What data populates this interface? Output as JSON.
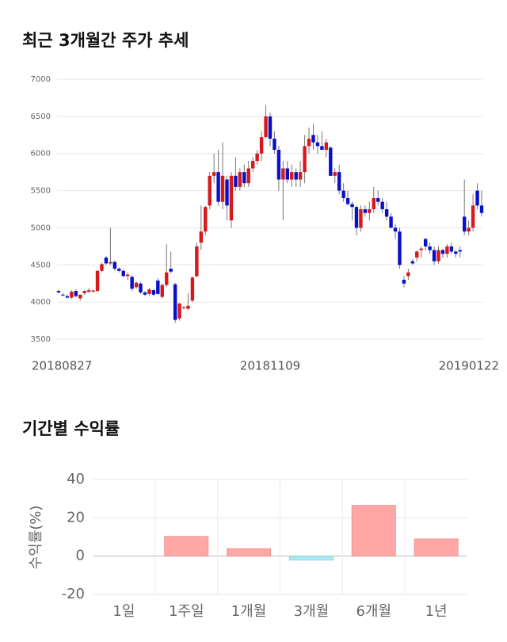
{
  "chart_data": [
    {
      "type": "candlestick",
      "title": "최근 3개월간 주가 추세",
      "categories": [
        "20180827",
        null,
        null,
        null,
        null,
        null,
        null,
        null,
        null,
        null,
        null,
        null,
        null,
        null,
        null,
        null,
        null,
        null,
        null,
        null,
        null,
        null,
        null,
        null,
        null,
        null,
        null,
        null,
        null,
        null,
        null,
        null,
        null,
        null,
        null,
        null,
        null,
        null,
        null,
        null,
        null,
        null,
        null,
        null,
        null,
        null,
        null,
        null,
        null,
        "20181109",
        null,
        null,
        null,
        null,
        null,
        null,
        null,
        null,
        null,
        null,
        null,
        null,
        null,
        null,
        null,
        null,
        null,
        null,
        null,
        null,
        null,
        null,
        null,
        null,
        null,
        null,
        null,
        null,
        null,
        null,
        null,
        null,
        null,
        null,
        null,
        null,
        null,
        null,
        null,
        null,
        null,
        null,
        null,
        null,
        null,
        null,
        null,
        null,
        "20190122"
      ],
      "open": [
        4150,
        4100,
        4080,
        4060,
        4150,
        4050,
        4120,
        4140,
        4140,
        4150,
        4420,
        4600,
        4520,
        4540,
        4450,
        4420,
        4350,
        4340,
        4200,
        4250,
        4130,
        4110,
        4160,
        4290,
        4070,
        4230,
        4450,
        4240,
        3780,
        3920,
        3910,
        4020,
        4350,
        4800,
        4950,
        5300,
        5700,
        5750,
        5350,
        5650,
        5100,
        5700,
        5550,
        5750,
        5600,
        5800,
        5900,
        6000,
        6220,
        6500,
        6200,
        6050,
        5650,
        5800,
        5650,
        5750,
        5650,
        5750,
        6100,
        6250,
        6150,
        6100,
        6050,
        6080,
        5700,
        5750,
        5500,
        5400,
        5320,
        5280,
        5000,
        5250,
        5200,
        5250,
        5400,
        5350,
        5250,
        5150,
        5000,
        4950,
        4300,
        4350,
        4550,
        4600,
        4700,
        4850,
        4750,
        4700,
        4550,
        4700,
        4650,
        4750,
        4680,
        4700,
        5150,
        4950,
        5000,
        5500,
        5300
      ],
      "high": [
        4170,
        4120,
        4100,
        4160,
        4170,
        4100,
        4160,
        4190,
        4170,
        4430,
        4530,
        4620,
        5000,
        4560,
        4470,
        4440,
        4400,
        4360,
        4280,
        4270,
        4150,
        4190,
        4180,
        4320,
        4250,
        4780,
        4680,
        4260,
        3990,
        3950,
        4120,
        4350,
        4800,
        5300,
        5300,
        5750,
        6000,
        6050,
        6150,
        5700,
        5750,
        5950,
        5800,
        5850,
        5900,
        5950,
        6050,
        6300,
        6650,
        6550,
        6300,
        6100,
        5900,
        5900,
        5850,
        5800,
        5900,
        6250,
        6350,
        6400,
        6250,
        6300,
        6200,
        6100,
        5800,
        5850,
        5600,
        5500,
        5350,
        5300,
        5300,
        5300,
        5350,
        5550,
        5500,
        5400,
        5350,
        5200,
        5050,
        5000,
        4350,
        4450,
        4580,
        4700,
        4750,
        4860,
        4800,
        4750,
        4750,
        4720,
        4780,
        4800,
        4700,
        4750,
        5650,
        5100,
        5450,
        5600,
        5500
      ],
      "low": [
        4120,
        4080,
        4050,
        4040,
        4060,
        4020,
        4100,
        4120,
        4130,
        4140,
        4400,
        4500,
        4500,
        4420,
        4400,
        4340,
        4300,
        4150,
        4180,
        4110,
        4080,
        4080,
        4080,
        4100,
        4050,
        4200,
        4380,
        3720,
        3750,
        3900,
        3890,
        4000,
        4330,
        4700,
        4900,
        5250,
        5600,
        5300,
        5250,
        5100,
        5000,
        5500,
        5500,
        5550,
        5550,
        5750,
        5850,
        5900,
        6200,
        6100,
        6000,
        5500,
        5100,
        5600,
        5550,
        5550,
        5550,
        5600,
        6000,
        6050,
        6000,
        6050,
        5950,
        5700,
        5600,
        5450,
        5350,
        5300,
        5100,
        4900,
        4950,
        5150,
        5100,
        5200,
        5300,
        5200,
        5100,
        5000,
        4850,
        4450,
        4200,
        4300,
        4500,
        4550,
        4600,
        4700,
        4650,
        4500,
        4520,
        4600,
        4600,
        4650,
        4600,
        4600,
        4900,
        4900,
        4950,
        5250,
        5150
      ],
      "close": [
        4130,
        4090,
        4060,
        4140,
        4080,
        4100,
        4150,
        4160,
        4155,
        4420,
        4510,
        4520,
        4540,
        4450,
        4420,
        4350,
        4370,
        4180,
        4260,
        4130,
        4100,
        4170,
        4100,
        4110,
        4230,
        4400,
        4410,
        3760,
        3980,
        3930,
        3950,
        4330,
        4750,
        4950,
        5280,
        5700,
        5750,
        5350,
        5700,
        5300,
        5700,
        5550,
        5750,
        5600,
        5800,
        5900,
        6000,
        6220,
        6500,
        6200,
        6050,
        5650,
        5800,
        5650,
        5750,
        5650,
        5750,
        6100,
        6200,
        6150,
        6100,
        6050,
        6150,
        5700,
        5750,
        5500,
        5400,
        5320,
        5280,
        5000,
        5250,
        5200,
        5250,
        5400,
        5350,
        5250,
        5150,
        5000,
        4950,
        4500,
        4250,
        4400,
        4520,
        4680,
        4720,
        4750,
        4700,
        4550,
        4700,
        4650,
        4750,
        4680,
        4650,
        4680,
        4950,
        5000,
        5300,
        5300,
        5200
      ],
      "up_color": "#d7191c",
      "down_color": "#0a10c8",
      "ylim": [
        3500,
        7000
      ],
      "yticks": [
        3500,
        4000,
        4500,
        5000,
        5500,
        6000,
        6500,
        7000
      ],
      "grid": true
    },
    {
      "type": "bar",
      "title": "기간별 수익률",
      "ylabel": "수익률(%)",
      "categories": [
        "1일",
        "1주일",
        "1개월",
        "3개월",
        "6개월",
        "1년"
      ],
      "values": [
        0,
        10.3,
        3.9,
        -2.1,
        26.5,
        9.0
      ],
      "positive_color": "#ffa7a7",
      "negative_color": "#a9e9f2",
      "ylim": [
        -20,
        40
      ],
      "yticks": [
        -20,
        0,
        20,
        40
      ],
      "grid": true
    }
  ]
}
